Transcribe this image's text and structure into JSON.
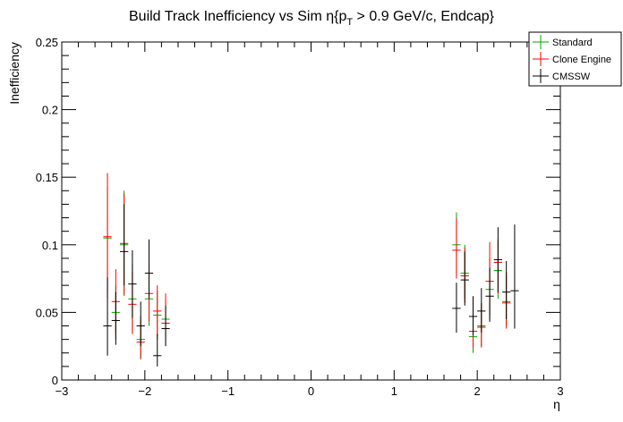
{
  "chart_data": {
    "type": "scatter",
    "title": "Build Track Inefficiency vs Sim η{p",
    "title_sub": "T",
    "title_rest": " > 0.9 GeV/c, Endcap}",
    "xlabel": "η",
    "ylabel": "Inefficiency",
    "xlim": [
      -3,
      3
    ],
    "ylim": [
      0,
      0.25
    ],
    "xticks": [
      "−3",
      "−2",
      "−1",
      "0",
      "1",
      "2",
      "3"
    ],
    "yticks": [
      "0",
      "0.05",
      "0.1",
      "0.15",
      "0.2",
      "0.25"
    ],
    "legend_position": "top-right",
    "grid": false,
    "series": [
      {
        "name": "Standard",
        "color": "#00aa00",
        "points": [
          {
            "x": -2.45,
            "y": 0.105,
            "lo": 0.065,
            "hi": 0.143
          },
          {
            "x": -2.35,
            "y": 0.05,
            "lo": 0.03,
            "hi": 0.07
          },
          {
            "x": -2.25,
            "y": 0.1,
            "lo": 0.062,
            "hi": 0.14
          },
          {
            "x": -2.15,
            "y": 0.06,
            "lo": 0.036,
            "hi": 0.086
          },
          {
            "x": -2.05,
            "y": 0.03,
            "lo": 0.015,
            "hi": 0.047
          },
          {
            "x": -1.95,
            "y": 0.06,
            "lo": 0.04,
            "hi": 0.08
          },
          {
            "x": -1.85,
            "y": 0.048,
            "lo": 0.03,
            "hi": 0.066
          },
          {
            "x": -1.75,
            "y": 0.045,
            "lo": 0.03,
            "hi": 0.06
          },
          {
            "x": 1.75,
            "y": 0.1,
            "lo": 0.077,
            "hi": 0.124
          },
          {
            "x": 1.85,
            "y": 0.079,
            "lo": 0.06,
            "hi": 0.1
          },
          {
            "x": 1.95,
            "y": 0.032,
            "lo": 0.02,
            "hi": 0.046
          },
          {
            "x": 2.05,
            "y": 0.04,
            "lo": 0.025,
            "hi": 0.056
          },
          {
            "x": 2.15,
            "y": 0.067,
            "lo": 0.045,
            "hi": 0.09
          },
          {
            "x": 2.25,
            "y": 0.081,
            "lo": 0.06,
            "hi": 0.102
          },
          {
            "x": 2.35,
            "y": 0.058,
            "lo": 0.04,
            "hi": 0.078
          }
        ]
      },
      {
        "name": "Clone Engine",
        "color": "#ff0000",
        "points": [
          {
            "x": -2.45,
            "y": 0.106,
            "lo": 0.06,
            "hi": 0.153
          },
          {
            "x": -2.35,
            "y": 0.058,
            "lo": 0.035,
            "hi": 0.082
          },
          {
            "x": -2.25,
            "y": 0.101,
            "lo": 0.063,
            "hi": 0.138
          },
          {
            "x": -2.15,
            "y": 0.056,
            "lo": 0.034,
            "hi": 0.08
          },
          {
            "x": -2.05,
            "y": 0.028,
            "lo": 0.016,
            "hi": 0.044
          },
          {
            "x": -1.95,
            "y": 0.064,
            "lo": 0.043,
            "hi": 0.086
          },
          {
            "x": -1.85,
            "y": 0.051,
            "lo": 0.033,
            "hi": 0.07
          },
          {
            "x": -1.75,
            "y": 0.042,
            "lo": 0.026,
            "hi": 0.064
          },
          {
            "x": 1.75,
            "y": 0.096,
            "lo": 0.075,
            "hi": 0.12
          },
          {
            "x": 1.85,
            "y": 0.077,
            "lo": 0.057,
            "hi": 0.098
          },
          {
            "x": 1.95,
            "y": 0.036,
            "lo": 0.024,
            "hi": 0.05
          },
          {
            "x": 2.05,
            "y": 0.039,
            "lo": 0.024,
            "hi": 0.057
          },
          {
            "x": 2.15,
            "y": 0.073,
            "lo": 0.048,
            "hi": 0.102
          },
          {
            "x": 2.25,
            "y": 0.087,
            "lo": 0.064,
            "hi": 0.104
          },
          {
            "x": 2.35,
            "y": 0.057,
            "lo": 0.038,
            "hi": 0.08
          }
        ]
      },
      {
        "name": "CMSSW",
        "color": "#000000",
        "points": [
          {
            "x": -2.45,
            "y": 0.04,
            "lo": 0.018,
            "hi": 0.076
          },
          {
            "x": -2.35,
            "y": 0.044,
            "lo": 0.026,
            "hi": 0.065
          },
          {
            "x": -2.25,
            "y": 0.095,
            "lo": 0.07,
            "hi": 0.13
          },
          {
            "x": -2.15,
            "y": 0.071,
            "lo": 0.046,
            "hi": 0.096
          },
          {
            "x": -2.05,
            "y": 0.04,
            "lo": 0.025,
            "hi": 0.058
          },
          {
            "x": -1.95,
            "y": 0.079,
            "lo": 0.06,
            "hi": 0.104
          },
          {
            "x": -1.85,
            "y": 0.018,
            "lo": 0.01,
            "hi": 0.034
          },
          {
            "x": -1.75,
            "y": 0.038,
            "lo": 0.025,
            "hi": 0.055
          },
          {
            "x": 1.75,
            "y": 0.053,
            "lo": 0.035,
            "hi": 0.072
          },
          {
            "x": 1.85,
            "y": 0.074,
            "lo": 0.055,
            "hi": 0.095
          },
          {
            "x": 1.95,
            "y": 0.047,
            "lo": 0.033,
            "hi": 0.062
          },
          {
            "x": 2.05,
            "y": 0.051,
            "lo": 0.035,
            "hi": 0.068
          },
          {
            "x": 2.15,
            "y": 0.062,
            "lo": 0.043,
            "hi": 0.083
          },
          {
            "x": 2.25,
            "y": 0.089,
            "lo": 0.065,
            "hi": 0.113
          },
          {
            "x": 2.35,
            "y": 0.065,
            "lo": 0.045,
            "hi": 0.088
          },
          {
            "x": 2.45,
            "y": 0.066,
            "lo": 0.038,
            "hi": 0.115
          }
        ]
      }
    ]
  }
}
